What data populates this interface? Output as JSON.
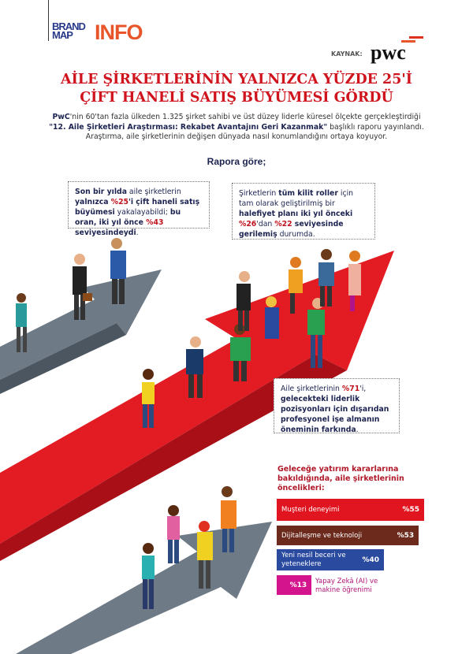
{
  "header": {
    "brand": "BRAND MAP",
    "info": "INFO",
    "source_label": "KAYNAK:",
    "source_logo": "pwc"
  },
  "title": [
    "AİLE ŞİRKETLERİNİN YALNIZCA YÜZDE 25'İ",
    "ÇİFT HANELİ SATIŞ BÜYÜMESİ GÖRDÜ"
  ],
  "intro": {
    "p1_bold": "PwC",
    "p1": "'nin 60'tan fazla ülkeden 1.325 şirket sahibi ve üst düzey liderle küresel ölçekte gerçekleştirdiği ",
    "p1_quote": "\"12. Aile Şirketleri Araştırması: Rekabet Avantajını Geri Kazanmak\"",
    "p2": " başlıklı raporu yayınlandı. Araştırma, aile şirketlerinin değişen dünyada nasıl konumlandığını ortaya koyuyor."
  },
  "subheading": "Rapora göre;",
  "box1": {
    "a": "Son bir yılda",
    "b": " aile şirketlerin ",
    "c": "yalnızca ",
    "d": "%25",
    "e": "'i çift haneli satış büyümesi",
    "f": " yakalayabildi; ",
    "g": "bu oran, iki yıl önce ",
    "h": "%43",
    "i": " seviyesindeydi",
    "j": "."
  },
  "box2": {
    "a": "Şirketlerin ",
    "b": "tüm kilit roller",
    "c": " için tam olarak geliştirilmiş bir ",
    "d": "halefiyet planı iki yıl önceki ",
    "e": "%26",
    "f": "'dan ",
    "g": "%22",
    "h": " seviyesinde gerilemiş",
    "i": " durumda."
  },
  "box3": {
    "a": "Aile şirketlerinin ",
    "b": "%71",
    "c": "'i, ",
    "d": "gelecekteki liderlik pozisyonları için dışarıdan profesyonel işe almanın öneminin farkında",
    "e": "."
  },
  "chart_data": {
    "type": "bar",
    "orientation": "horizontal",
    "title": "Geleceğe yatırım kararlarına bakıldığında, aile şirketlerinin öncelikleri:",
    "categories": [
      "Muşteri deneyimi",
      "Dijitalleşme ve teknoloji",
      "Yeni nesil beceri ve yeteneklere",
      "Yapay Zekâ (AI) ve makine öğrenimi"
    ],
    "values": [
      55,
      53,
      40,
      13
    ],
    "labels": [
      "%55",
      "%53",
      "%40",
      "%13"
    ],
    "colors": [
      "#e01520",
      "#6b2a1c",
      "#2a4aa0",
      "#d4148c"
    ],
    "xlim": [
      0,
      55
    ]
  }
}
